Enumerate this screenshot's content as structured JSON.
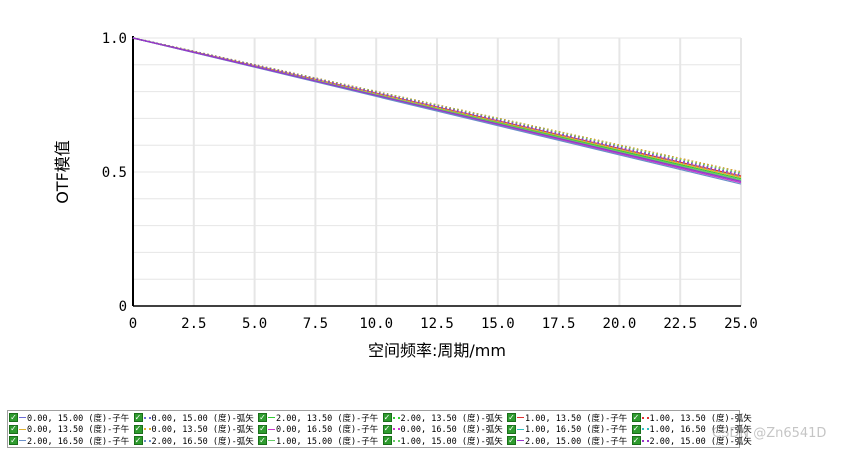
{
  "chart_data": {
    "type": "line",
    "xlabel": "空间频率:周期/mm",
    "ylabel": "OTF模值",
    "xlim": [
      0,
      25
    ],
    "ylim": [
      0,
      1.0
    ],
    "x_ticks": [
      "0",
      "2.5",
      "5.0",
      "7.5",
      "10.0",
      "12.5",
      "15.0",
      "17.5",
      "20.0",
      "22.5",
      "25.0"
    ],
    "y_ticks": [
      "0",
      "0.5",
      "1.0"
    ],
    "x": [
      0,
      25
    ],
    "grid": true,
    "legend_position": "bottom",
    "series": [
      {
        "name": "0.00, 15.00 (度)-子午",
        "color": "#6b6bd6",
        "style": "solid",
        "values": [
          1.0,
          0.47
        ]
      },
      {
        "name": "0.00, 15.00 (度)-弧矢",
        "color": "#6b6bd6",
        "style": "dotted",
        "values": [
          1.0,
          0.49
        ]
      },
      {
        "name": "2.00, 13.50 (度)-子午",
        "color": "#33cc33",
        "style": "solid",
        "values": [
          1.0,
          0.475
        ]
      },
      {
        "name": "2.00, 13.50 (度)-弧矢",
        "color": "#33cc33",
        "style": "dotted",
        "values": [
          1.0,
          0.5
        ]
      },
      {
        "name": "1.00, 13.50 (度)-子午",
        "color": "#e03030",
        "style": "solid",
        "values": [
          1.0,
          0.485
        ]
      },
      {
        "name": "1.00, 13.50 (度)-弧矢",
        "color": "#e03030",
        "style": "dotted",
        "values": [
          1.0,
          0.5
        ]
      },
      {
        "name": "0.00, 13.50 (度)-子午",
        "color": "#e0b030",
        "style": "solid",
        "values": [
          1.0,
          0.48
        ]
      },
      {
        "name": "0.00, 13.50 (度)-弧矢",
        "color": "#e0b030",
        "style": "dotted",
        "values": [
          1.0,
          0.5
        ]
      },
      {
        "name": "0.00, 16.50 (度)-子午",
        "color": "#cc33cc",
        "style": "solid",
        "values": [
          1.0,
          0.46
        ]
      },
      {
        "name": "0.00, 16.50 (度)-弧矢",
        "color": "#cc33cc",
        "style": "dotted",
        "values": [
          1.0,
          0.49
        ]
      },
      {
        "name": "1.00, 16.50 (度)-子午",
        "color": "#30c0c0",
        "style": "solid",
        "values": [
          1.0,
          0.465
        ]
      },
      {
        "name": "1.00, 16.50 (度)-弧矢",
        "color": "#30c0c0",
        "style": "dotted",
        "values": [
          1.0,
          0.495
        ]
      },
      {
        "name": "2.00, 16.50 (度)-子午",
        "color": "#6a8fc8",
        "style": "solid",
        "values": [
          1.0,
          0.455
        ]
      },
      {
        "name": "2.00, 16.50 (度)-弧矢",
        "color": "#6a8fc8",
        "style": "dotted",
        "values": [
          1.0,
          0.485
        ]
      },
      {
        "name": "1.00, 15.00 (度)-子午",
        "color": "#66cc66",
        "style": "solid",
        "values": [
          1.0,
          0.47
        ]
      },
      {
        "name": "1.00, 15.00 (度)-弧矢",
        "color": "#66cc66",
        "style": "dotted",
        "values": [
          1.0,
          0.495
        ]
      },
      {
        "name": "2.00, 15.00 (度)-子午",
        "color": "#9933cc",
        "style": "solid",
        "values": [
          1.0,
          0.465
        ]
      },
      {
        "name": "2.00, 15.00 (度)-弧矢",
        "color": "#9933cc",
        "style": "dotted",
        "values": [
          1.0,
          0.49
        ]
      }
    ]
  },
  "watermark": "CSDN @Zn6541D"
}
